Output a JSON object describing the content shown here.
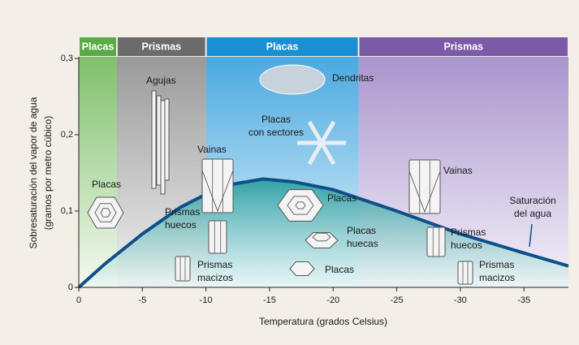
{
  "chart_data": {
    "type": "line",
    "xlabel": "Temperatura (grados Celsius)",
    "ylabel": [
      "Sobresaturación del vapor de agua",
      "(gramos por metro cúbico)"
    ],
    "xlim": [
      0,
      -38.5
    ],
    "ylim": [
      0,
      0.3
    ],
    "xticks": [
      0,
      -5,
      -10,
      -15,
      -20,
      -25,
      -30,
      -35
    ],
    "yticks": [
      {
        "value": 0,
        "label": "0"
      },
      {
        "value": 0.1,
        "label": "0,1"
      },
      {
        "value": 0.2,
        "label": "0,2"
      },
      {
        "value": 0.3,
        "label": "0,3"
      }
    ],
    "bands": [
      {
        "label": "Placas",
        "from": 0,
        "to": -3,
        "color": "#5aab47"
      },
      {
        "label": "Prismas",
        "from": -3,
        "to": -10,
        "color": "#6b6b6b"
      },
      {
        "label": "Placas",
        "from": -10,
        "to": -22,
        "color": "#1a90d2"
      },
      {
        "label": "Prismas",
        "from": -22,
        "to": -38.5,
        "color": "#7b5aa8"
      }
    ],
    "series": [
      {
        "name": "Saturación del agua",
        "color": "#0e4f8a",
        "x": [
          0,
          -2,
          -5,
          -8,
          -10,
          -12,
          -14.5,
          -17,
          -20,
          -25,
          -30,
          -35,
          -38.5
        ],
        "values": [
          0,
          0.03,
          0.07,
          0.105,
          0.122,
          0.135,
          0.142,
          0.138,
          0.128,
          0.1,
          0.07,
          0.045,
          0.028
        ]
      }
    ],
    "annotations": [
      [
        "Agujas"
      ],
      [
        "Placas"
      ],
      [
        "Vainas"
      ],
      [
        "Prismas",
        "huecos"
      ],
      [
        "Prismas",
        "macizos"
      ],
      [
        "Dendritas"
      ],
      [
        "Placas",
        "con sectores"
      ],
      [
        "Placas"
      ],
      [
        "Placas",
        "huecas"
      ],
      [
        "Placas"
      ],
      [
        "Vainas"
      ],
      [
        "Prismas",
        "huecos"
      ],
      [
        "Prismas",
        "macizos"
      ],
      [
        "Saturación",
        "del agua"
      ]
    ]
  }
}
